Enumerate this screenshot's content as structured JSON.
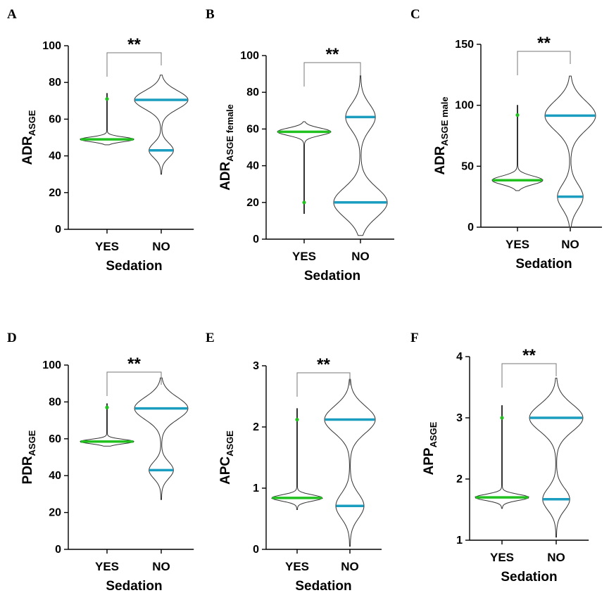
{
  "colors": {
    "yes": "#21c21f",
    "no": "#1a9dbf",
    "outline": "#333333",
    "axis": "#000000",
    "bracket": "#777777"
  },
  "chart_data": [
    {
      "letter": "A",
      "type": "violin",
      "ylabel_main": "ADR",
      "ylabel_sub": "ASGE",
      "xlabel": "Sedation",
      "categories": [
        "YES",
        "NO"
      ],
      "ylim": [
        0,
        100
      ],
      "yticks": [
        "0",
        "20",
        "40",
        "60",
        "80",
        "100"
      ],
      "ytick_values": [
        0,
        20,
        40,
        60,
        80,
        100
      ],
      "significance": "**",
      "violins": [
        {
          "group": "YES",
          "min": 46,
          "max": 74,
          "modes": [
            {
              "y": 49,
              "w": 0.9,
              "s": 1.3
            }
          ],
          "lines": [
            49
          ],
          "outlier": 71
        },
        {
          "group": "NO",
          "min": 30,
          "max": 84,
          "modes": [
            {
              "y": 70.5,
              "w": 1.0,
              "s": 5
            },
            {
              "y": 43,
              "w": 0.45,
              "s": 4
            }
          ],
          "lines": [
            70.5,
            43
          ],
          "outlier": null
        }
      ]
    },
    {
      "letter": "B",
      "type": "violin",
      "ylabel_main": "ADR",
      "ylabel_sub": "ASGE female",
      "xlabel": "Sedation",
      "categories": [
        "YES",
        "NO"
      ],
      "ylim": [
        0,
        100
      ],
      "yticks": [
        "0",
        "20",
        "40",
        "60",
        "80",
        "100"
      ],
      "ytick_values": [
        0,
        20,
        40,
        60,
        80,
        100
      ],
      "significance": "**",
      "violins": [
        {
          "group": "YES",
          "min": 14,
          "max": 64,
          "modes": [
            {
              "y": 58.5,
              "w": 1.0,
              "s": 2
            }
          ],
          "lines": [
            58.5
          ],
          "outlier": 20
        },
        {
          "group": "NO",
          "min": 2,
          "max": 89,
          "modes": [
            {
              "y": 20,
              "w": 1.0,
              "s": 8
            },
            {
              "y": 66.5,
              "w": 0.55,
              "s": 7
            }
          ],
          "lines": [
            20,
            66.5
          ],
          "outlier": null
        }
      ]
    },
    {
      "letter": "C",
      "type": "violin",
      "ylabel_main": "ADR",
      "ylabel_sub": "ASGE male",
      "xlabel": "Sedation",
      "categories": [
        "YES",
        "NO"
      ],
      "ylim": [
        0,
        150
      ],
      "yticks": [
        "0",
        "50",
        "100",
        "150"
      ],
      "ytick_values": [
        0,
        50,
        100,
        150
      ],
      "significance": "**",
      "violins": [
        {
          "group": "YES",
          "min": 30,
          "max": 100,
          "modes": [
            {
              "y": 38.5,
              "w": 0.9,
              "s": 3.5
            }
          ],
          "lines": [
            38.5
          ],
          "outlier": 92
        },
        {
          "group": "NO",
          "min": 0,
          "max": 124,
          "modes": [
            {
              "y": 91.5,
              "w": 1.0,
              "s": 12
            },
            {
              "y": 25,
              "w": 0.5,
              "s": 10
            }
          ],
          "lines": [
            91.5,
            25
          ],
          "outlier": null
        }
      ]
    },
    {
      "letter": "D",
      "type": "violin",
      "ylabel_main": "PDR",
      "ylabel_sub": "ASGE",
      "xlabel": "Sedation",
      "categories": [
        "YES",
        "NO"
      ],
      "ylim": [
        0,
        100
      ],
      "yticks": [
        "0",
        "20",
        "40",
        "60",
        "80",
        "100"
      ],
      "ytick_values": [
        0,
        20,
        40,
        60,
        80,
        100
      ],
      "significance": "**",
      "violins": [
        {
          "group": "YES",
          "min": 56,
          "max": 79,
          "modes": [
            {
              "y": 58.5,
              "w": 0.9,
              "s": 1.2
            }
          ],
          "lines": [
            58.5
          ],
          "outlier": 77
        },
        {
          "group": "NO",
          "min": 27,
          "max": 93,
          "modes": [
            {
              "y": 76.5,
              "w": 1.0,
              "s": 6
            },
            {
              "y": 43,
              "w": 0.45,
              "s": 4.5
            }
          ],
          "lines": [
            76.5,
            43
          ],
          "outlier": null
        }
      ]
    },
    {
      "letter": "E",
      "type": "violin",
      "ylabel_main": "APC",
      "ylabel_sub": "ASGE",
      "xlabel": "Sedation",
      "categories": [
        "YES",
        "NO"
      ],
      "ylim": [
        0,
        3
      ],
      "yticks": [
        "0",
        "1",
        "2",
        "3"
      ],
      "ytick_values": [
        0,
        1,
        2,
        3
      ],
      "significance": "**",
      "violins": [
        {
          "group": "YES",
          "min": 0.65,
          "max": 2.3,
          "modes": [
            {
              "y": 0.84,
              "w": 0.9,
              "s": 0.05
            }
          ],
          "lines": [
            0.84
          ],
          "outlier": 2.12
        },
        {
          "group": "NO",
          "min": 0.05,
          "max": 2.78,
          "modes": [
            {
              "y": 2.12,
              "w": 1.0,
              "s": 0.22
            },
            {
              "y": 0.71,
              "w": 0.55,
              "s": 0.2
            }
          ],
          "lines": [
            2.12,
            0.71
          ],
          "outlier": null
        }
      ]
    },
    {
      "letter": "F",
      "type": "violin",
      "ylabel_main": "APP",
      "ylabel_sub": "ASGE",
      "xlabel": "Sedation",
      "categories": [
        "YES",
        "NO"
      ],
      "ylim": [
        1,
        4
      ],
      "yticks": [
        "1",
        "2",
        "3",
        "4"
      ],
      "ytick_values": [
        1,
        2,
        3,
        4
      ],
      "significance": "**",
      "violins": [
        {
          "group": "YES",
          "min": 1.52,
          "max": 3.2,
          "modes": [
            {
              "y": 1.7,
              "w": 0.9,
              "s": 0.05
            }
          ],
          "lines": [
            1.7
          ],
          "outlier": 3.0
        },
        {
          "group": "NO",
          "min": 1.05,
          "max": 3.65,
          "modes": [
            {
              "y": 3.0,
              "w": 1.0,
              "s": 0.22
            },
            {
              "y": 1.67,
              "w": 0.5,
              "s": 0.18
            }
          ],
          "lines": [
            3.0,
            1.67
          ],
          "outlier": null
        }
      ]
    }
  ]
}
